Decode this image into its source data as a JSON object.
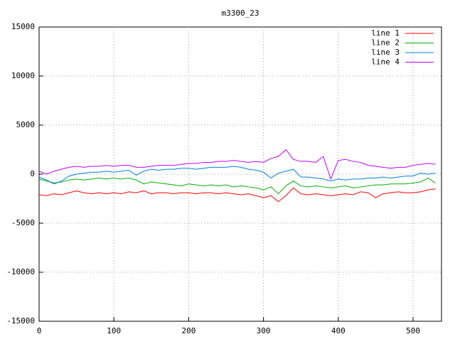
{
  "chart_data": {
    "type": "line",
    "title": "m3300_23",
    "x": [
      0,
      10,
      20,
      30,
      40,
      50,
      60,
      70,
      80,
      90,
      100,
      110,
      120,
      130,
      140,
      150,
      160,
      170,
      180,
      190,
      200,
      210,
      220,
      230,
      240,
      250,
      260,
      270,
      280,
      290,
      300,
      310,
      320,
      330,
      340,
      350,
      360,
      370,
      380,
      390,
      400,
      410,
      420,
      430,
      440,
      450,
      460,
      470,
      480,
      490,
      500,
      510,
      520,
      530
    ],
    "series": [
      {
        "name": "line 1",
        "color": "#ff0000",
        "values": [
          -2100,
          -2200,
          -2000,
          -2100,
          -1900,
          -1700,
          -1900,
          -2000,
          -1900,
          -2000,
          -1900,
          -2000,
          -1800,
          -1900,
          -1700,
          -2000,
          -1900,
          -1900,
          -2000,
          -1900,
          -1900,
          -2000,
          -1900,
          -1900,
          -2000,
          -1900,
          -2000,
          -2100,
          -2000,
          -2200,
          -2400,
          -2200,
          -2800,
          -2200,
          -1400,
          -2000,
          -2100,
          -2000,
          -2100,
          -2200,
          -2100,
          -2000,
          -2100,
          -1800,
          -1900,
          -2400,
          -2000,
          -1900,
          -1800,
          -1900,
          -1900,
          -1800,
          -1600,
          -1500
        ]
      },
      {
        "name": "line 2",
        "color": "#00b000",
        "values": [
          -500,
          -700,
          -900,
          -800,
          -600,
          -500,
          -600,
          -500,
          -400,
          -500,
          -400,
          -500,
          -400,
          -600,
          -1000,
          -800,
          -900,
          -1000,
          -1100,
          -1200,
          -1000,
          -1100,
          -1200,
          -1100,
          -1200,
          -1100,
          -1300,
          -1200,
          -1300,
          -1400,
          -1600,
          -1300,
          -2000,
          -1200,
          -700,
          -1200,
          -1300,
          -1200,
          -1300,
          -1400,
          -1300,
          -1200,
          -1400,
          -1300,
          -1200,
          -1100,
          -1100,
          -1000,
          -1000,
          -1000,
          -900,
          -800,
          -400,
          -900
        ]
      },
      {
        "name": "line 3",
        "color": "#0080e0",
        "values": [
          -300,
          -600,
          -1000,
          -700,
          -200,
          0,
          100,
          200,
          200,
          300,
          200,
          300,
          400,
          -100,
          300,
          500,
          400,
          500,
          500,
          600,
          600,
          500,
          600,
          700,
          700,
          700,
          800,
          700,
          500,
          400,
          200,
          -400,
          100,
          300,
          500,
          -300,
          -300,
          -400,
          -500,
          -700,
          -500,
          -600,
          -500,
          -500,
          -400,
          -400,
          -300,
          -400,
          -300,
          -200,
          -200,
          100,
          0,
          100
        ]
      },
      {
        "name": "line 4",
        "color": "#c000ff",
        "values": [
          300,
          0,
          300,
          500,
          700,
          800,
          700,
          800,
          800,
          900,
          800,
          900,
          900,
          700,
          700,
          800,
          900,
          900,
          900,
          1000,
          1100,
          1100,
          1200,
          1200,
          1300,
          1300,
          1400,
          1300,
          1200,
          1300,
          1200,
          1600,
          1800,
          2500,
          1500,
          1300,
          1300,
          1200,
          1800,
          -500,
          1400,
          1500,
          1300,
          1200,
          900,
          800,
          700,
          600,
          700,
          700,
          900,
          1000,
          1100,
          1000
        ]
      }
    ],
    "xlim": [
      0,
      538
    ],
    "ylim": [
      -15000,
      15000
    ],
    "xticks": [
      0,
      100,
      200,
      300,
      400,
      500
    ],
    "yticks": [
      -15000,
      -10000,
      -5000,
      0,
      5000,
      10000,
      15000
    ],
    "grid": true,
    "legend": "top-right"
  }
}
